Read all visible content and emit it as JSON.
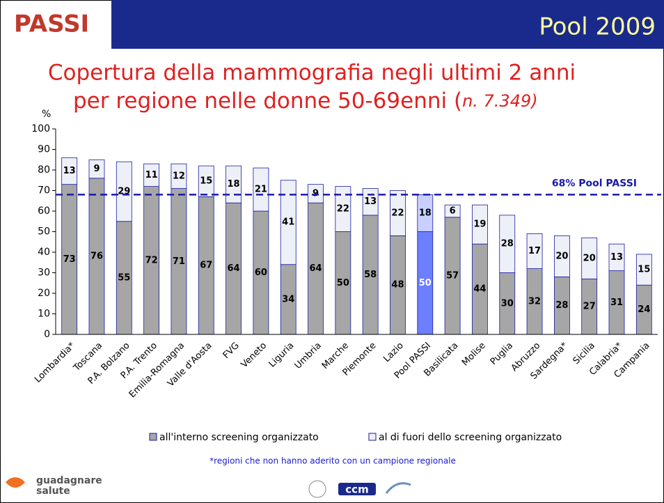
{
  "header": {
    "logo": "PASSI",
    "label": "Pool 2009"
  },
  "chart_data": {
    "type": "bar",
    "stacked": true,
    "title_line1": "Copertura della mammografia negli ultimi 2 anni",
    "title_line2": "per regione nelle donne 50-69enni (",
    "title_note": "n. 7.349)",
    "y_label": "%",
    "categories": [
      "Lombardia*",
      "Toscana",
      "P.A. Bolzano",
      "P.A. Trento",
      "Emilia-Romagna",
      "Valle d'Aosta",
      "FVG",
      "Veneto",
      "Liguria",
      "Umbria",
      "Marche",
      "Piemonte",
      "Lazio",
      "Pool PASSI",
      "Basilicata",
      "Molise",
      "Puglia",
      "Abruzzo",
      "Sardegna*",
      "Sicilia",
      "Calabria*",
      "Campania"
    ],
    "series": [
      {
        "name": "all'interno screening organizzato",
        "color": "#a6a6a6",
        "values": [
          73,
          76,
          55,
          72,
          71,
          67,
          64,
          60,
          34,
          64,
          50,
          58,
          48,
          50,
          57,
          44,
          30,
          32,
          28,
          27,
          31,
          24
        ]
      },
      {
        "name": "al di fuori dello screening organizzato",
        "color": "#eef0f8",
        "values": [
          13,
          9,
          29,
          11,
          12,
          15,
          18,
          21,
          41,
          9,
          22,
          13,
          22,
          18,
          6,
          19,
          28,
          17,
          20,
          20,
          13,
          15
        ]
      }
    ],
    "highlight": {
      "category": "Pool PASSI",
      "colors": [
        "#6b7fff",
        "#c9d0ff"
      ]
    },
    "reference_line": {
      "value": 68,
      "label": "68% Pool PASSI",
      "color": "#1a1aa6"
    },
    "ylim": [
      0,
      100
    ],
    "yticks": [
      0,
      10,
      20,
      30,
      40,
      50,
      60,
      70,
      80,
      90,
      100
    ],
    "footnote": "*regioni che non hanno aderito con un campione regionale"
  },
  "footer": {
    "brand": "guadagnare",
    "brand2": "salute",
    "logo": "ccm"
  }
}
